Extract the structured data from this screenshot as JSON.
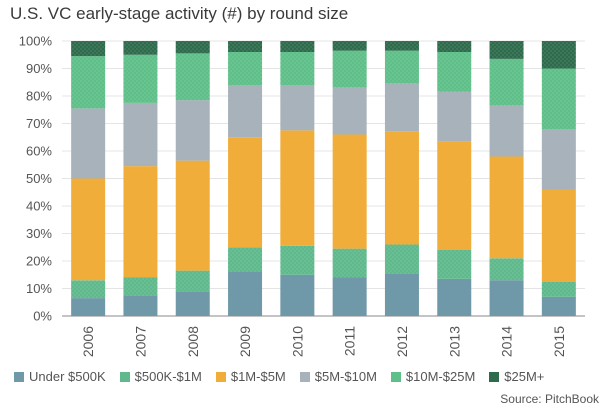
{
  "chart_data": {
    "type": "bar",
    "stacked": true,
    "title": "U.S. VC early-stage activity (#) by round size",
    "source": "Source: PitchBook",
    "categories": [
      "2006",
      "2007",
      "2008",
      "2009",
      "2010",
      "2011",
      "2012",
      "2013",
      "2014",
      "2015"
    ],
    "ylim": [
      0,
      100
    ],
    "yticks": [
      "0%",
      "10%",
      "20%",
      "30%",
      "40%",
      "50%",
      "60%",
      "70%",
      "80%",
      "90%",
      "100%"
    ],
    "legend_position": "bottom",
    "series": [
      {
        "name": "Under $500K",
        "color": "#6f98a8",
        "values": [
          6.5,
          7.5,
          9,
          16,
          15,
          14,
          15.5,
          13.5,
          13,
          7
        ]
      },
      {
        "name": "$500K-$1M",
        "color": "#5fb98c",
        "values": [
          6.5,
          6.5,
          7.5,
          9,
          10.5,
          10.5,
          10.5,
          10.5,
          8,
          5.5
        ]
      },
      {
        "name": "$1M-$5M",
        "color": "#f1ad3a",
        "values": [
          37,
          40.5,
          40,
          40,
          42,
          41.5,
          41,
          39.5,
          37,
          33.5
        ]
      },
      {
        "name": "$5M-$10M",
        "color": "#a8b2bb",
        "values": [
          25.5,
          23,
          22,
          19,
          16.5,
          17,
          17.5,
          18,
          18.5,
          22
        ]
      },
      {
        "name": "$10M-$25M",
        "color": "#5fbf88",
        "values": [
          19,
          17.5,
          17,
          12,
          12,
          13.5,
          12,
          14.5,
          17,
          22
        ]
      },
      {
        "name": "$25M+",
        "color": "#2e6b4c",
        "values": [
          5.5,
          5,
          4.5,
          4,
          4,
          3.5,
          3.5,
          4,
          6.5,
          10
        ]
      }
    ]
  }
}
